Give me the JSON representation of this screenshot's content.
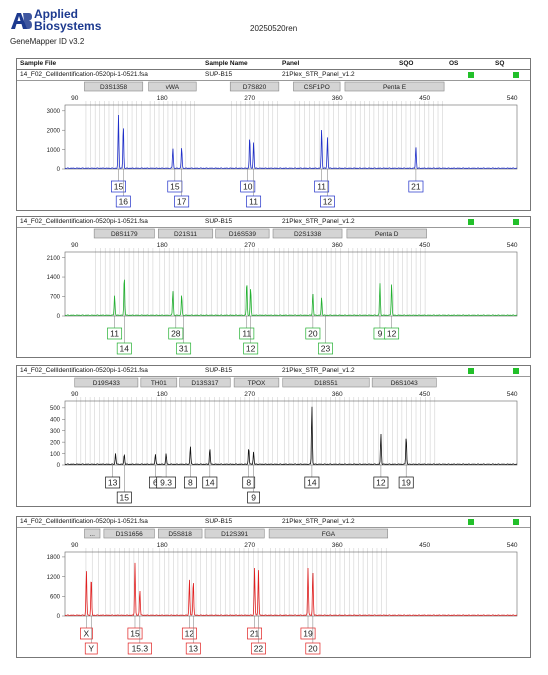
{
  "app": {
    "brand_line1": "Applied",
    "brand_line2": "Biosystems",
    "version": "GeneMapper ID v3.2",
    "report_title": "20250520ren"
  },
  "table_header": {
    "sample_file": "Sample File",
    "sample_name": "Sample Name",
    "panel": "Panel",
    "sqo": "SQO",
    "os": "OS",
    "sq": "SQ"
  },
  "colors": {
    "blue": "#1f2fc9",
    "green": "#22b030",
    "black": "#111111",
    "red": "#e02020",
    "status_green": "#22c02a"
  },
  "chart_data": [
    {
      "type": "line",
      "color": "blue",
      "sample_file": "14_F02_CellIdentification-0520pi-1-0521.fsa",
      "sample_name": "SUP-B15",
      "panel": "21Plex_STR_Panel_v1.2",
      "x_ticks": [
        "90",
        "180",
        "270",
        "360",
        "450",
        "540"
      ],
      "y_ticks": [
        "0",
        "1000",
        "2000",
        "3000"
      ],
      "ylim": [
        0,
        3300
      ],
      "markers": [
        {
          "name": "D3S1358",
          "from": 100,
          "to": 160
        },
        {
          "name": "vWA",
          "from": 166,
          "to": 215
        },
        {
          "name": "D7S820",
          "from": 250,
          "to": 300
        },
        {
          "name": "CSF1PO",
          "from": 315,
          "to": 363
        },
        {
          "name": "Penta E",
          "from": 368,
          "to": 470
        }
      ],
      "peaks": [
        {
          "x": 135,
          "y": 2750
        },
        {
          "x": 140,
          "y": 2250
        },
        {
          "x": 191,
          "y": 1050
        },
        {
          "x": 200,
          "y": 1100
        },
        {
          "x": 270,
          "y": 1650
        },
        {
          "x": 274,
          "y": 1350
        },
        {
          "x": 344,
          "y": 2050
        },
        {
          "x": 350,
          "y": 1600
        },
        {
          "x": 441,
          "y": 1100
        }
      ],
      "alleles_top": [
        {
          "label": "15",
          "x": 135
        },
        {
          "label": "15",
          "x": 193
        },
        {
          "label": "10",
          "x": 268
        },
        {
          "label": "11",
          "x": 344
        },
        {
          "label": "21",
          "x": 441
        }
      ],
      "alleles_bottom": [
        {
          "label": "16",
          "x": 140
        },
        {
          "label": "17",
          "x": 200
        },
        {
          "label": "11",
          "x": 274
        },
        {
          "label": "12",
          "x": 350
        }
      ]
    },
    {
      "type": "line",
      "color": "green",
      "sample_file": "14_F02_CellIdentification-0520pi-1-0521.fsa",
      "sample_name": "SUP-B15",
      "panel": "21Plex_STR_Panel_v1.2",
      "x_ticks": [
        "90",
        "180",
        "270",
        "360",
        "450",
        "540"
      ],
      "y_ticks": [
        "0",
        "700",
        "1400",
        "2100"
      ],
      "ylim": [
        0,
        2300
      ],
      "markers": [
        {
          "name": "D8S1179",
          "from": 110,
          "to": 172
        },
        {
          "name": "D21S11",
          "from": 176,
          "to": 232
        },
        {
          "name": "D16S539",
          "from": 235,
          "to": 290
        },
        {
          "name": "D2S1338",
          "from": 294,
          "to": 365
        },
        {
          "name": "Penta D",
          "from": 370,
          "to": 452
        }
      ],
      "peaks": [
        {
          "x": 131,
          "y": 720
        },
        {
          "x": 141,
          "y": 1450
        },
        {
          "x": 191,
          "y": 900
        },
        {
          "x": 200,
          "y": 750
        },
        {
          "x": 267,
          "y": 1250
        },
        {
          "x": 271,
          "y": 1000
        },
        {
          "x": 335,
          "y": 800
        },
        {
          "x": 344,
          "y": 650
        },
        {
          "x": 404,
          "y": 1150
        },
        {
          "x": 416,
          "y": 1150
        }
      ],
      "alleles_top": [
        {
          "label": "11",
          "x": 131
        },
        {
          "label": "28",
          "x": 194
        },
        {
          "label": "11",
          "x": 267
        },
        {
          "label": "20",
          "x": 335
        },
        {
          "label": "9",
          "x": 404
        },
        {
          "label": "12",
          "x": 416
        }
      ],
      "alleles_bottom": [
        {
          "label": "14",
          "x": 141
        },
        {
          "label": "31",
          "x": 202
        },
        {
          "label": "12",
          "x": 271
        },
        {
          "label": "23",
          "x": 348
        }
      ]
    },
    {
      "type": "line",
      "color": "black",
      "sample_file": "14_F02_CellIdentification-0520pi-1-0521.fsa",
      "sample_name": "SUP-B15",
      "panel": "21Plex_STR_Panel_v1.2",
      "x_ticks": [
        "90",
        "180",
        "270",
        "360",
        "450",
        "540"
      ],
      "y_ticks": [
        "0",
        "100",
        "200",
        "300",
        "400",
        "500"
      ],
      "ylim": [
        0,
        560
      ],
      "markers": [
        {
          "name": "D19S433",
          "from": 90,
          "to": 155
        },
        {
          "name": "TH01",
          "from": 158,
          "to": 195
        },
        {
          "name": "D13S317",
          "from": 198,
          "to": 250
        },
        {
          "name": "TPOX",
          "from": 254,
          "to": 300
        },
        {
          "name": "D18S51",
          "from": 304,
          "to": 393
        },
        {
          "name": "D6S1043",
          "from": 396,
          "to": 462
        }
      ],
      "peaks": [
        {
          "x": 132,
          "y": 95
        },
        {
          "x": 141,
          "y": 90
        },
        {
          "x": 173,
          "y": 90
        },
        {
          "x": 184,
          "y": 95
        },
        {
          "x": 209,
          "y": 160
        },
        {
          "x": 229,
          "y": 140
        },
        {
          "x": 269,
          "y": 150
        },
        {
          "x": 274,
          "y": 110
        },
        {
          "x": 334,
          "y": 520
        },
        {
          "x": 405,
          "y": 270
        },
        {
          "x": 431,
          "y": 250
        }
      ],
      "alleles_top": [
        {
          "label": "13",
          "x": 129
        },
        {
          "label": "6",
          "x": 173
        },
        {
          "label": "9.3",
          "x": 184
        },
        {
          "label": "8",
          "x": 209
        },
        {
          "label": "14",
          "x": 229
        },
        {
          "label": "8",
          "x": 269
        },
        {
          "label": "14",
          "x": 334
        },
        {
          "label": "12",
          "x": 405
        },
        {
          "label": "19",
          "x": 431
        }
      ],
      "alleles_bottom": [
        {
          "label": "15",
          "x": 141
        },
        {
          "label": "9",
          "x": 274
        }
      ]
    },
    {
      "type": "line",
      "color": "red",
      "sample_file": "14_F02_CellIdentification-0520pi-1-0521.fsa",
      "sample_name": "SUP-B15",
      "panel": "21Plex_STR_Panel_v1.2",
      "x_ticks": [
        "90",
        "180",
        "270",
        "360",
        "450",
        "540"
      ],
      "y_ticks": [
        "0",
        "600",
        "1200",
        "1800"
      ],
      "ylim": [
        0,
        1950
      ],
      "markers": [
        {
          "name": "...",
          "from": 100,
          "to": 116
        },
        {
          "name": "D1S1656",
          "from": 120,
          "to": 172
        },
        {
          "name": "D5S818",
          "from": 176,
          "to": 221
        },
        {
          "name": "D12S391",
          "from": 224,
          "to": 285
        },
        {
          "name": "FGA",
          "from": 290,
          "to": 412
        }
      ],
      "peaks": [
        {
          "x": 102,
          "y": 1400
        },
        {
          "x": 107,
          "y": 1200
        },
        {
          "x": 152,
          "y": 1600
        },
        {
          "x": 157,
          "y": 800
        },
        {
          "x": 208,
          "y": 1100
        },
        {
          "x": 212,
          "y": 1100
        },
        {
          "x": 275,
          "y": 1450
        },
        {
          "x": 279,
          "y": 1400
        },
        {
          "x": 330,
          "y": 1450
        },
        {
          "x": 335,
          "y": 1350
        }
      ],
      "alleles_top": [
        {
          "label": "X",
          "x": 102
        },
        {
          "label": "15",
          "x": 152
        },
        {
          "label": "12",
          "x": 208
        },
        {
          "label": "21",
          "x": 275
        },
        {
          "label": "19",
          "x": 330
        }
      ],
      "alleles_bottom": [
        {
          "label": "Y",
          "x": 107
        },
        {
          "label": "15.3",
          "x": 157
        },
        {
          "label": "13",
          "x": 212
        },
        {
          "label": "22",
          "x": 279
        },
        {
          "label": "20",
          "x": 335
        }
      ]
    }
  ]
}
